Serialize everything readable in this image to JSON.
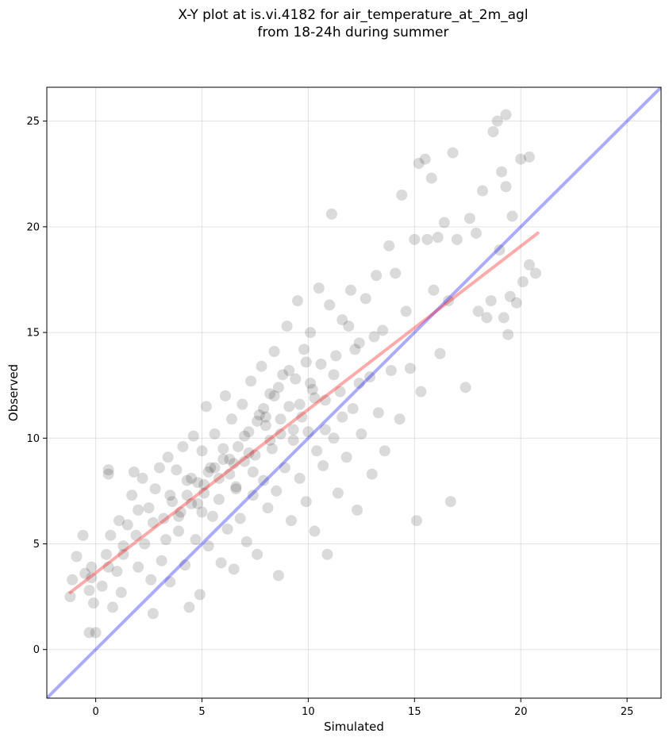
{
  "title_line1": "X-Y plot at is.vi.4182 for air_temperature_at_2m_agl",
  "title_line2": "from 18-24h during summer",
  "chart_data": {
    "type": "scatter",
    "xlabel": "Simulated",
    "ylabel": "Observed",
    "xlim": [
      -2.3,
      26.6
    ],
    "ylim": [
      -2.3,
      26.6
    ],
    "xticks": [
      0,
      5,
      10,
      15,
      20,
      25
    ],
    "yticks": [
      0,
      5,
      10,
      15,
      20,
      25
    ],
    "grid": true,
    "point_color": "#000000",
    "point_alpha": 0.08,
    "identity_line": {
      "color": "#0000ff",
      "alpha": 0.33,
      "from": [
        -2.3,
        -2.3
      ],
      "to": [
        26.6,
        26.6
      ]
    },
    "fit_line": {
      "color": "#ff0000",
      "alpha": 0.33,
      "from": [
        -1.2,
        2.7
      ],
      "to": [
        20.8,
        19.7
      ]
    },
    "points": [
      [
        -1.2,
        2.5
      ],
      [
        -1.1,
        3.3
      ],
      [
        -0.9,
        4.4
      ],
      [
        -0.6,
        5.4
      ],
      [
        -0.5,
        3.6
      ],
      [
        -0.3,
        2.8
      ],
      [
        -0.2,
        3.9
      ],
      [
        -0.1,
        2.2
      ],
      [
        -0.3,
        0.8
      ],
      [
        0.0,
        0.8
      ],
      [
        0.3,
        3.0
      ],
      [
        0.5,
        4.5
      ],
      [
        0.6,
        8.5
      ],
      [
        0.6,
        8.3
      ],
      [
        0.7,
        5.4
      ],
      [
        0.8,
        2.0
      ],
      [
        1.0,
        3.7
      ],
      [
        1.1,
        6.1
      ],
      [
        1.2,
        2.7
      ],
      [
        1.3,
        4.9
      ],
      [
        1.5,
        5.9
      ],
      [
        1.7,
        7.3
      ],
      [
        1.8,
        8.4
      ],
      [
        2.0,
        3.9
      ],
      [
        2.0,
        6.6
      ],
      [
        2.2,
        8.1
      ],
      [
        2.3,
        5.0
      ],
      [
        2.5,
        6.7
      ],
      [
        2.6,
        3.3
      ],
      [
        2.7,
        1.7
      ],
      [
        2.8,
        7.6
      ],
      [
        3.0,
        8.6
      ],
      [
        3.1,
        4.2
      ],
      [
        3.2,
        6.2
      ],
      [
        3.3,
        5.2
      ],
      [
        3.4,
        9.1
      ],
      [
        3.5,
        3.2
      ],
      [
        3.6,
        7.0
      ],
      [
        3.8,
        8.5
      ],
      [
        3.9,
        5.6
      ],
      [
        4.0,
        6.5
      ],
      [
        4.1,
        9.6
      ],
      [
        4.2,
        4.0
      ],
      [
        4.3,
        7.3
      ],
      [
        4.4,
        2.0
      ],
      [
        4.5,
        8.1
      ],
      [
        4.6,
        10.1
      ],
      [
        4.7,
        5.2
      ],
      [
        4.8,
        6.9
      ],
      [
        4.9,
        2.6
      ],
      [
        5.0,
        9.4
      ],
      [
        5.1,
        7.8
      ],
      [
        5.2,
        11.5
      ],
      [
        5.3,
        4.9
      ],
      [
        5.4,
        8.6
      ],
      [
        5.5,
        6.3
      ],
      [
        5.6,
        10.2
      ],
      [
        5.8,
        7.1
      ],
      [
        5.9,
        4.1
      ],
      [
        6.0,
        9.0
      ],
      [
        6.1,
        12.0
      ],
      [
        6.2,
        5.7
      ],
      [
        6.3,
        8.3
      ],
      [
        6.4,
        10.9
      ],
      [
        6.5,
        3.8
      ],
      [
        6.6,
        7.6
      ],
      [
        6.7,
        9.6
      ],
      [
        6.8,
        6.2
      ],
      [
        6.9,
        11.6
      ],
      [
        7.0,
        8.9
      ],
      [
        7.1,
        5.1
      ],
      [
        7.2,
        10.3
      ],
      [
        7.3,
        12.7
      ],
      [
        7.4,
        7.3
      ],
      [
        7.5,
        9.2
      ],
      [
        7.6,
        4.5
      ],
      [
        7.7,
        11.1
      ],
      [
        7.8,
        13.4
      ],
      [
        7.9,
        8.0
      ],
      [
        8.0,
        10.6
      ],
      [
        8.1,
        6.7
      ],
      [
        8.2,
        12.1
      ],
      [
        8.3,
        9.5
      ],
      [
        8.4,
        14.1
      ],
      [
        8.5,
        7.5
      ],
      [
        8.6,
        3.5
      ],
      [
        8.7,
        10.9
      ],
      [
        8.8,
        13.0
      ],
      [
        8.9,
        8.6
      ],
      [
        9.0,
        15.3
      ],
      [
        9.1,
        11.5
      ],
      [
        9.2,
        6.1
      ],
      [
        9.3,
        9.9
      ],
      [
        9.4,
        12.8
      ],
      [
        9.5,
        16.5
      ],
      [
        9.6,
        8.1
      ],
      [
        9.7,
        11.0
      ],
      [
        9.8,
        14.2
      ],
      [
        9.9,
        7.0
      ],
      [
        10.0,
        10.3
      ],
      [
        10.1,
        15.0
      ],
      [
        10.2,
        12.3
      ],
      [
        10.3,
        5.6
      ],
      [
        10.4,
        9.4
      ],
      [
        10.5,
        17.1
      ],
      [
        10.6,
        13.5
      ],
      [
        10.7,
        8.7
      ],
      [
        10.8,
        11.8
      ],
      [
        10.9,
        4.5
      ],
      [
        11.0,
        16.3
      ],
      [
        11.1,
        20.6
      ],
      [
        11.2,
        10.0
      ],
      [
        11.3,
        13.9
      ],
      [
        11.4,
        7.4
      ],
      [
        11.5,
        12.2
      ],
      [
        11.6,
        15.6
      ],
      [
        11.8,
        9.1
      ],
      [
        12.0,
        17.0
      ],
      [
        12.1,
        11.4
      ],
      [
        12.3,
        6.6
      ],
      [
        12.4,
        14.5
      ],
      [
        12.5,
        10.2
      ],
      [
        12.7,
        16.6
      ],
      [
        12.9,
        12.9
      ],
      [
        13.0,
        8.3
      ],
      [
        13.2,
        17.7
      ],
      [
        13.3,
        11.2
      ],
      [
        13.5,
        15.1
      ],
      [
        13.6,
        9.4
      ],
      [
        13.8,
        19.1
      ],
      [
        13.9,
        13.2
      ],
      [
        14.1,
        17.8
      ],
      [
        14.3,
        10.9
      ],
      [
        14.4,
        21.5
      ],
      [
        14.6,
        16.0
      ],
      [
        14.8,
        13.3
      ],
      [
        15.0,
        19.4
      ],
      [
        15.1,
        6.1
      ],
      [
        15.2,
        23.0
      ],
      [
        15.3,
        12.2
      ],
      [
        15.5,
        23.2
      ],
      [
        15.6,
        19.4
      ],
      [
        15.8,
        22.3
      ],
      [
        15.9,
        17.0
      ],
      [
        16.1,
        19.5
      ],
      [
        16.2,
        14.0
      ],
      [
        16.4,
        20.2
      ],
      [
        16.6,
        16.5
      ],
      [
        16.8,
        23.5
      ],
      [
        16.7,
        7.0
      ],
      [
        17.0,
        19.4
      ],
      [
        17.4,
        12.4
      ],
      [
        17.6,
        20.4
      ],
      [
        17.9,
        19.7
      ],
      [
        18.0,
        16.0
      ],
      [
        18.2,
        21.7
      ],
      [
        18.4,
        15.7
      ],
      [
        18.6,
        16.5
      ],
      [
        18.7,
        24.5
      ],
      [
        18.9,
        25.0
      ],
      [
        19.0,
        18.9
      ],
      [
        19.1,
        22.6
      ],
      [
        19.2,
        15.7
      ],
      [
        19.3,
        21.9
      ],
      [
        19.5,
        16.7
      ],
      [
        19.6,
        20.5
      ],
      [
        19.8,
        16.4
      ],
      [
        20.0,
        23.2
      ],
      [
        20.1,
        17.4
      ],
      [
        20.4,
        23.3
      ],
      [
        20.4,
        18.2
      ],
      [
        20.7,
        17.8
      ],
      [
        19.3,
        25.3
      ],
      [
        19.4,
        14.9
      ],
      [
        8.4,
        12.0
      ],
      [
        8.0,
        11.0
      ],
      [
        7.2,
        9.3
      ],
      [
        6.5,
        8.8
      ],
      [
        5.8,
        8.1
      ],
      [
        5.1,
        7.4
      ],
      [
        4.5,
        6.9
      ],
      [
        3.9,
        6.3
      ],
      [
        8.7,
        10.2
      ],
      [
        7.6,
        10.8
      ],
      [
        6.3,
        9.0
      ],
      [
        5.6,
        8.6
      ],
      [
        4.8,
        7.9
      ],
      [
        9.3,
        10.4
      ],
      [
        10.3,
        11.9
      ],
      [
        11.2,
        13.0
      ],
      [
        12.2,
        14.2
      ],
      [
        13.1,
        14.8
      ],
      [
        8.6,
        12.4
      ],
      [
        9.1,
        13.2
      ],
      [
        7.9,
        11.4
      ],
      [
        7.0,
        10.1
      ],
      [
        6.0,
        9.5
      ],
      [
        5.3,
        8.4
      ],
      [
        4.3,
        8.0
      ],
      [
        3.5,
        7.3
      ],
      [
        2.7,
        6.0
      ],
      [
        1.9,
        5.4
      ],
      [
        1.3,
        4.5
      ],
      [
        0.6,
        3.9
      ],
      [
        -0.2,
        3.4
      ],
      [
        10.8,
        10.4
      ],
      [
        11.6,
        11.0
      ],
      [
        12.4,
        12.6
      ],
      [
        9.9,
        13.6
      ],
      [
        8.2,
        9.9
      ],
      [
        7.4,
        8.4
      ],
      [
        6.6,
        7.7
      ],
      [
        5.0,
        6.5
      ],
      [
        9.6,
        11.6
      ],
      [
        10.1,
        12.6
      ],
      [
        11.9,
        15.3
      ]
    ]
  }
}
